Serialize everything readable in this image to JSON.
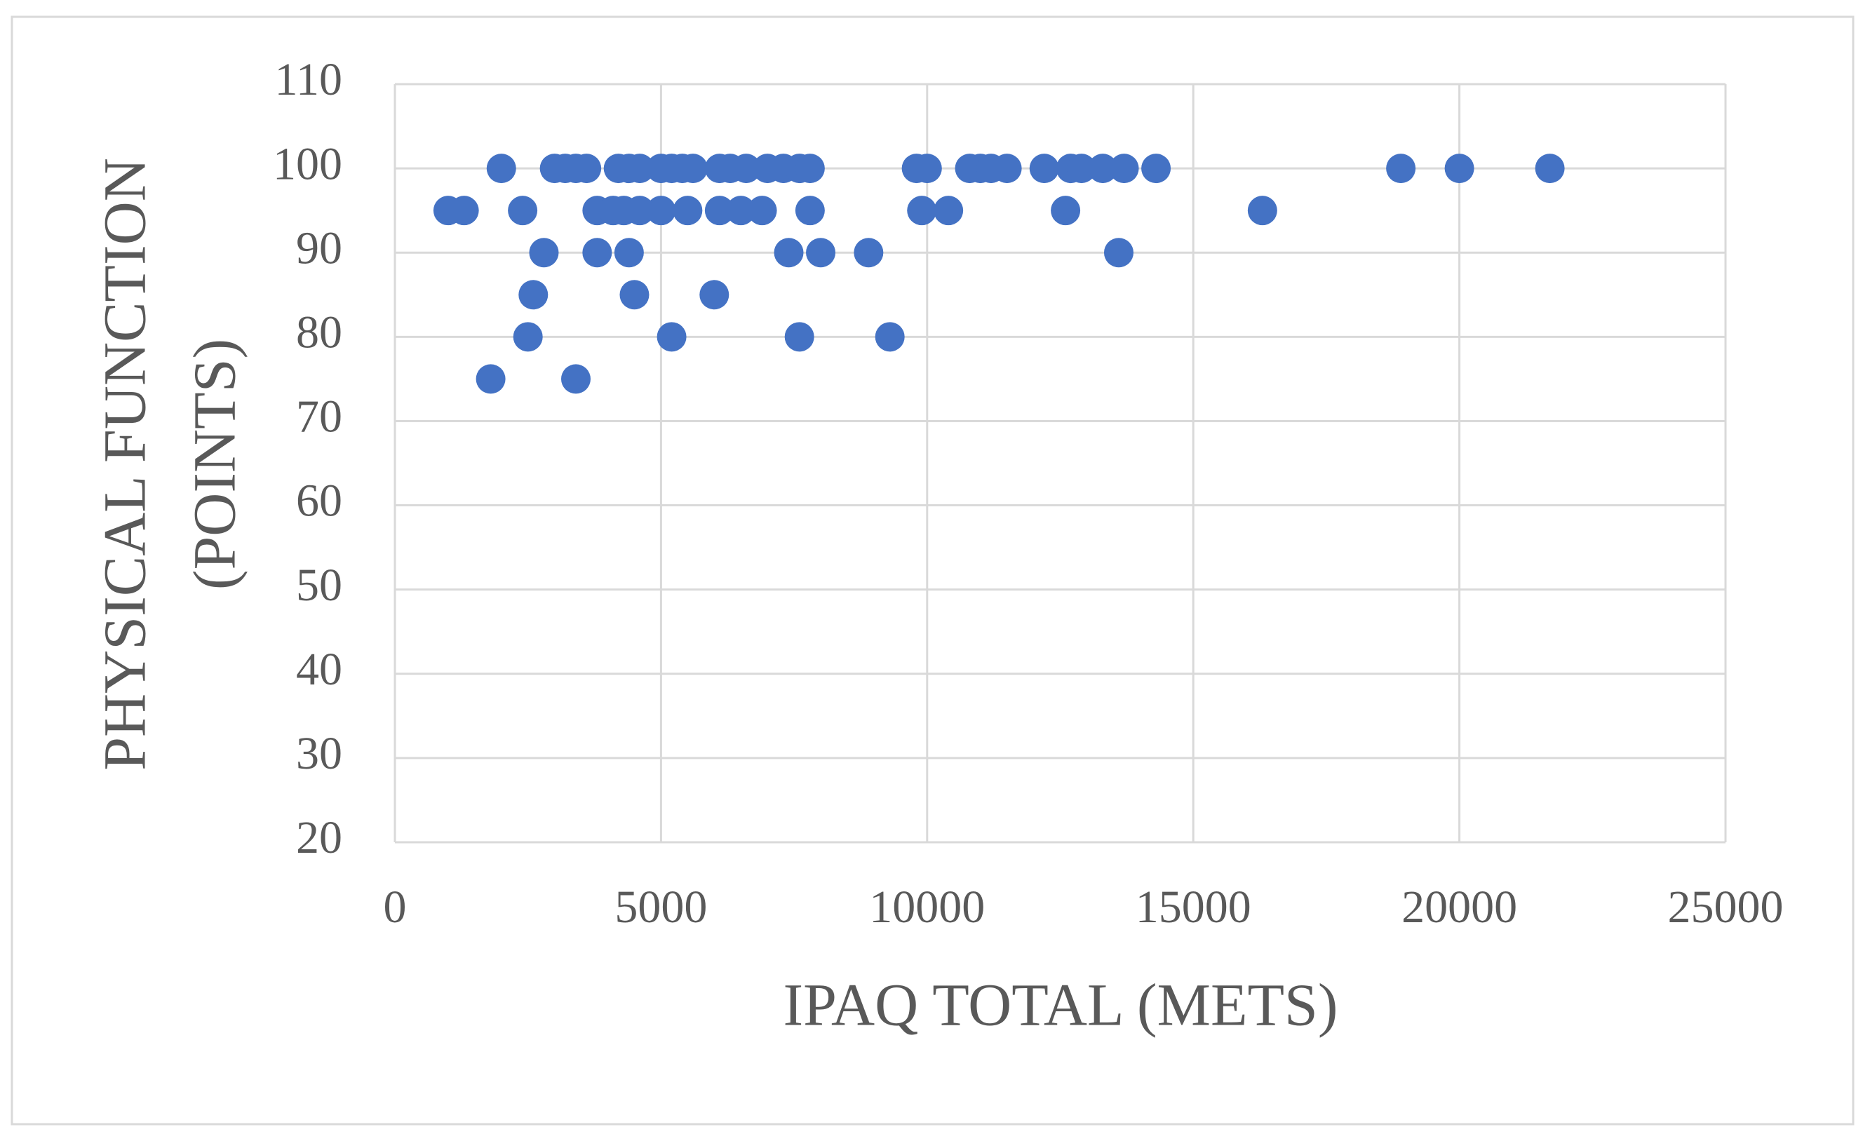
{
  "chart_data": {
    "type": "scatter",
    "x_label": "IPAQ TOTAL (METS)",
    "y_label": [
      "PHYSICAL FUNCTION",
      "(POINTS)"
    ],
    "series": [
      {
        "color": "#4472c4",
        "x": [
          2000,
          3000,
          3200,
          3400,
          3600,
          4200,
          4400,
          4600,
          5000,
          5200,
          5400,
          5600,
          6100,
          6300,
          6600,
          7000,
          7300,
          7600,
          7800,
          9800,
          10000,
          10800,
          11000,
          11200,
          11500,
          12200,
          12700,
          12900,
          13300,
          13700,
          14300,
          18900,
          20000,
          21700,
          1000,
          1300,
          2400,
          3800,
          4100,
          4300,
          4600,
          5000,
          5500,
          6100,
          6500,
          6900,
          7800,
          9900,
          10400,
          12600,
          16300,
          2800,
          3800,
          4400,
          7400,
          8000,
          8900,
          13600,
          2600,
          4500,
          6000,
          2500,
          5200,
          7600,
          9300,
          1800,
          3400
        ],
        "values": [
          100,
          100,
          100,
          100,
          100,
          100,
          100,
          100,
          100,
          100,
          100,
          100,
          100,
          100,
          100,
          100,
          100,
          100,
          100,
          100,
          100,
          100,
          100,
          100,
          100,
          100,
          100,
          100,
          100,
          100,
          100,
          100,
          100,
          100,
          95,
          95,
          95,
          95,
          95,
          95,
          95,
          95,
          95,
          95,
          95,
          95,
          95,
          95,
          95,
          95,
          95,
          90,
          90,
          90,
          90,
          90,
          90,
          90,
          85,
          85,
          85,
          80,
          80,
          80,
          80,
          75,
          75
        ]
      }
    ],
    "xlim": [
      0,
      25000
    ],
    "xticks": [
      0,
      5000,
      10000,
      15000,
      20000,
      25000
    ],
    "ylim": [
      20,
      110
    ],
    "yticks": [
      20,
      30,
      40,
      50,
      60,
      70,
      80,
      90,
      100,
      110
    ],
    "grid": true
  }
}
